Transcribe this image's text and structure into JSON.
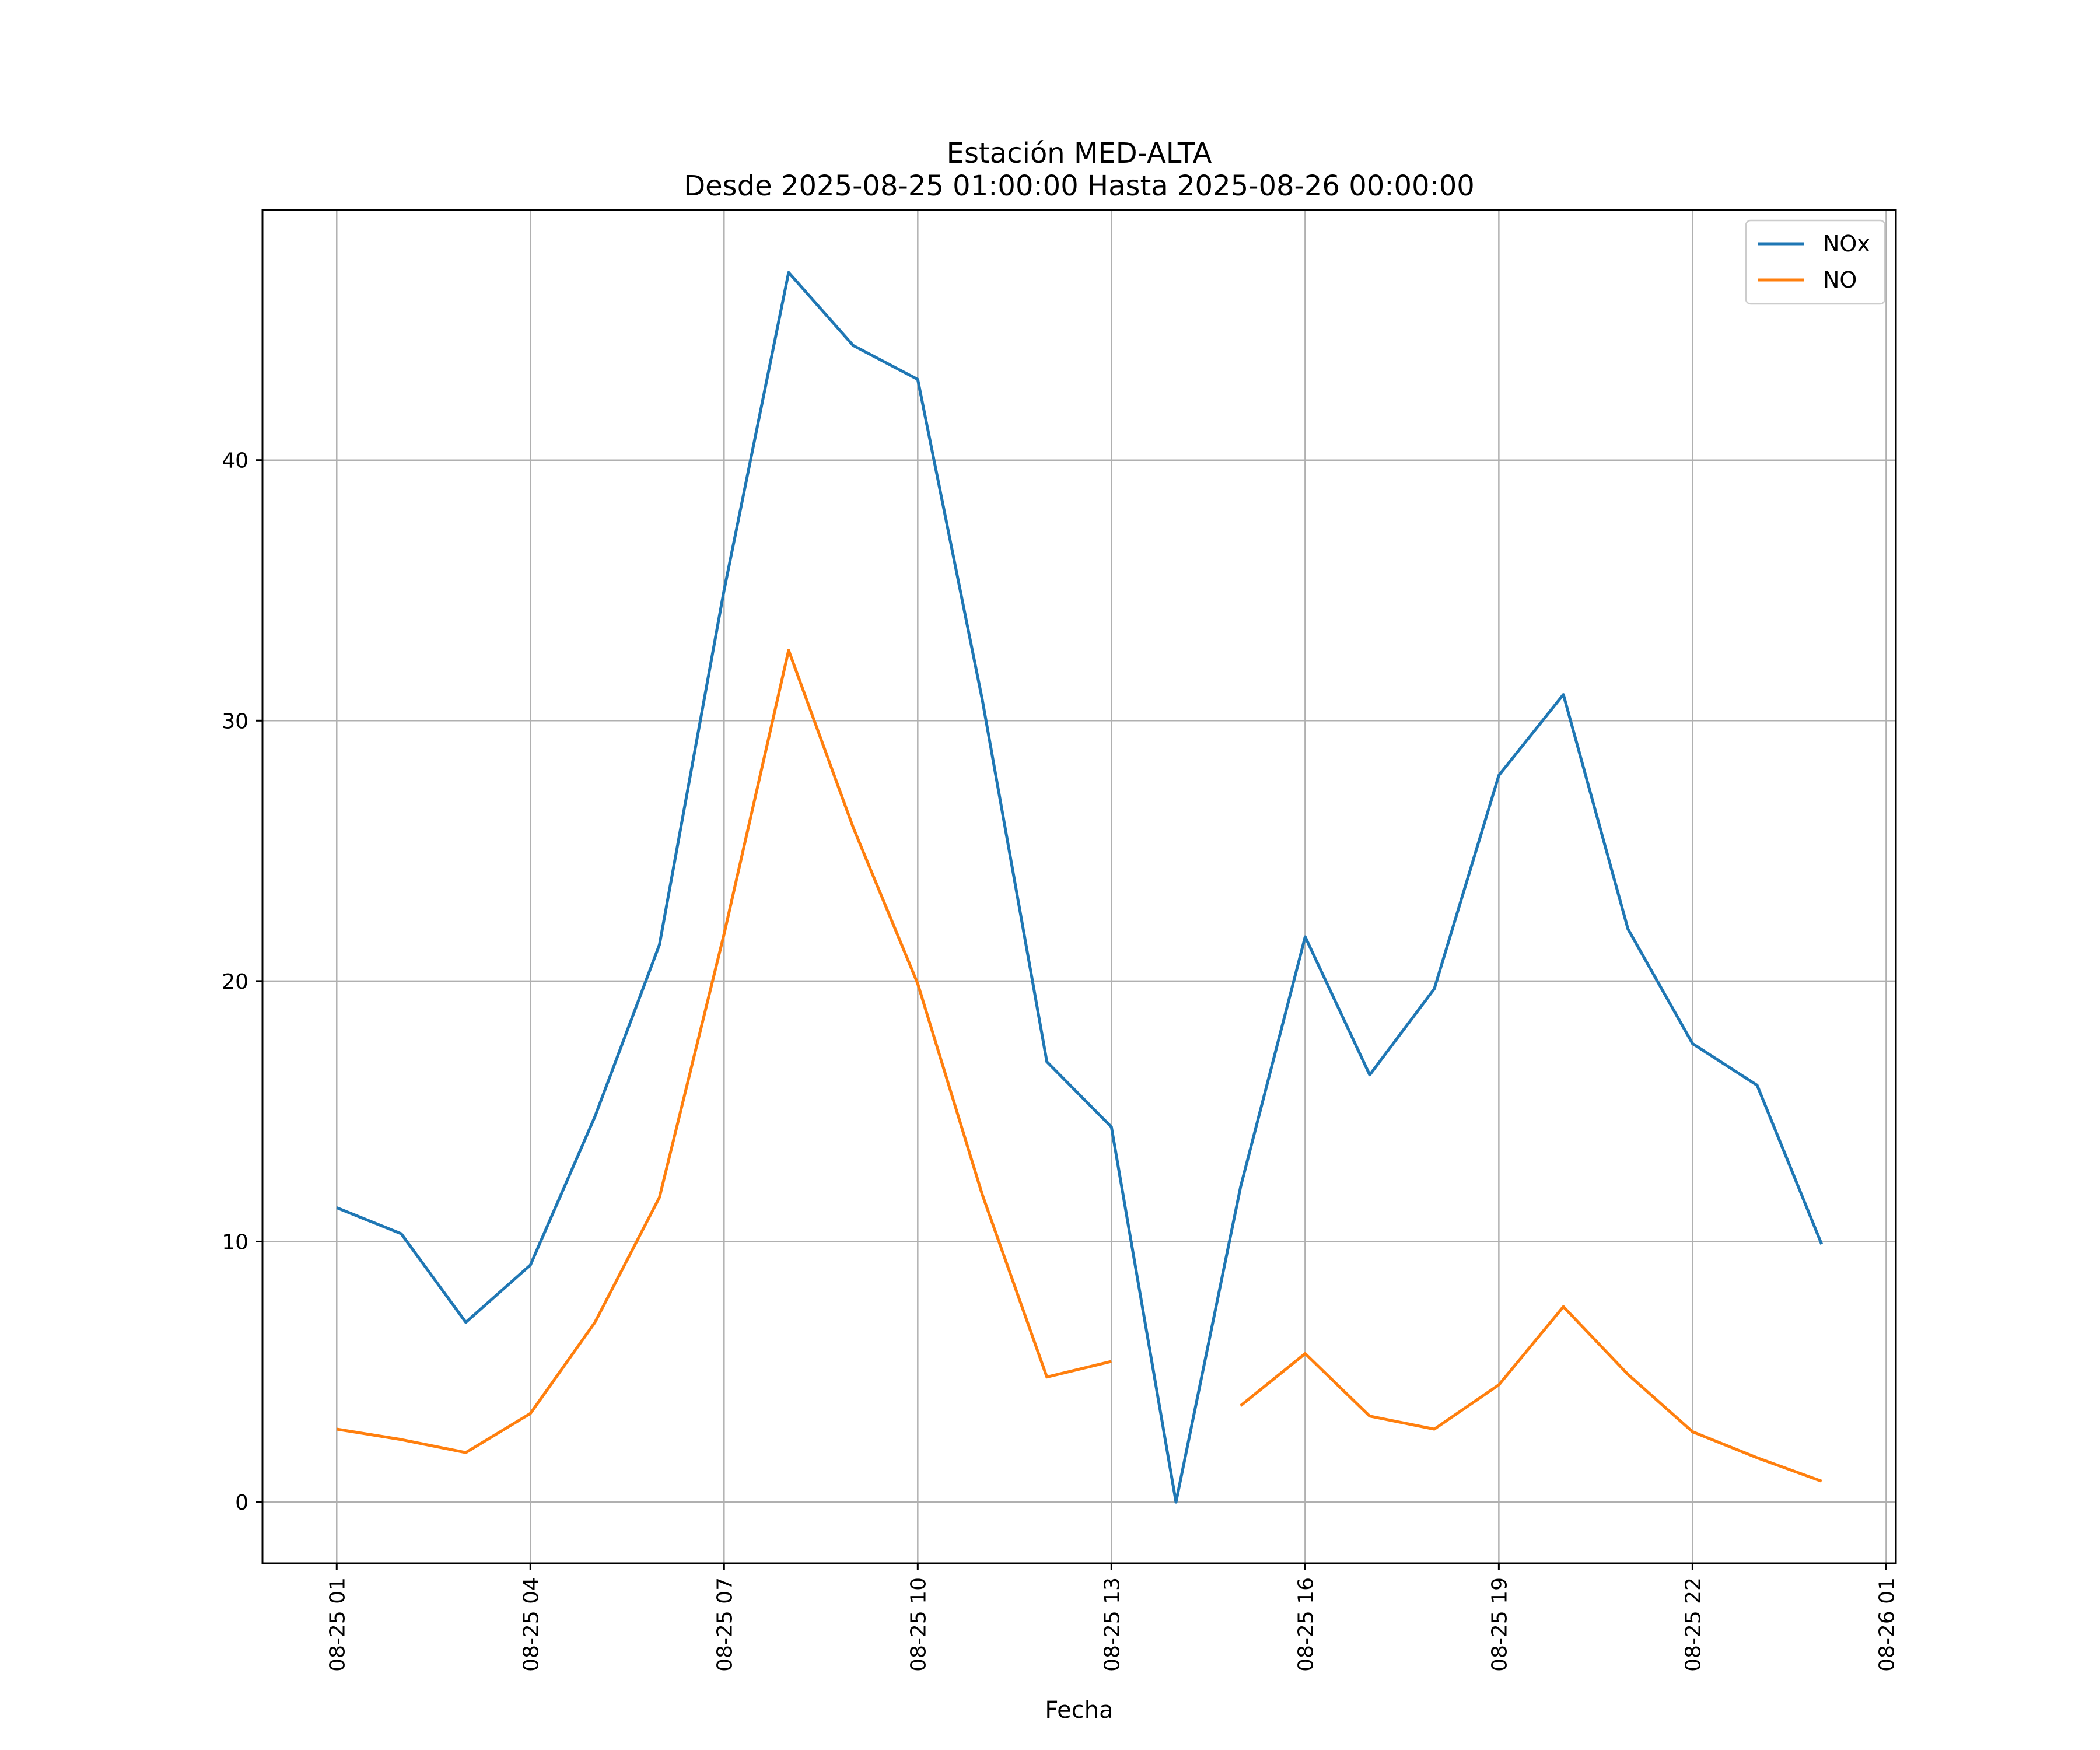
{
  "chart_data": {
    "type": "line",
    "title": "Estación MED-ALTA",
    "subtitle": "Desde 2025-08-25 01:00:00 Hasta 2025-08-26 00:00:00",
    "xlabel": "Fecha",
    "ylabel": "",
    "x": [
      "2025-08-25 01:00",
      "2025-08-25 02:00",
      "2025-08-25 03:00",
      "2025-08-25 04:00",
      "2025-08-25 05:00",
      "2025-08-25 06:00",
      "2025-08-25 07:00",
      "2025-08-25 08:00",
      "2025-08-25 09:00",
      "2025-08-25 10:00",
      "2025-08-25 11:00",
      "2025-08-25 12:00",
      "2025-08-25 13:00",
      "2025-08-25 14:00",
      "2025-08-25 15:00",
      "2025-08-25 16:00",
      "2025-08-25 17:00",
      "2025-08-25 18:00",
      "2025-08-25 19:00",
      "2025-08-25 20:00",
      "2025-08-25 21:00",
      "2025-08-25 22:00",
      "2025-08-25 23:00",
      "2025-08-26 00:00"
    ],
    "xlim": [
      "2025-08-24 23:51",
      "2025-08-26 01:09"
    ],
    "ylim": [
      -2.35,
      49.6
    ],
    "x_ticks": [
      "08-25 01",
      "08-25 04",
      "08-25 07",
      "08-25 10",
      "08-25 13",
      "08-25 16",
      "08-25 19",
      "08-25 22",
      "08-26 01"
    ],
    "y_ticks": [
      0,
      10,
      20,
      30,
      40
    ],
    "grid": true,
    "legend": "top-right",
    "series": [
      {
        "name": "NOx",
        "color": "#1f77b4",
        "values": [
          11.3,
          10.3,
          6.9,
          9.1,
          14.8,
          21.4,
          35.0,
          47.2,
          44.4,
          43.1,
          30.8,
          16.9,
          14.4,
          0.0,
          12.1,
          21.7,
          16.4,
          19.7,
          27.9,
          31.0,
          22.0,
          17.6,
          16.0,
          9.9
        ]
      },
      {
        "name": "NO",
        "color": "#ff7f0e",
        "values": [
          2.8,
          2.4,
          1.9,
          3.4,
          6.9,
          11.7,
          21.8,
          32.7,
          25.9,
          19.9,
          11.8,
          4.8,
          5.4,
          null,
          3.7,
          5.7,
          3.3,
          2.8,
          4.5,
          7.5,
          4.9,
          2.7,
          1.7,
          0.8
        ]
      }
    ]
  }
}
